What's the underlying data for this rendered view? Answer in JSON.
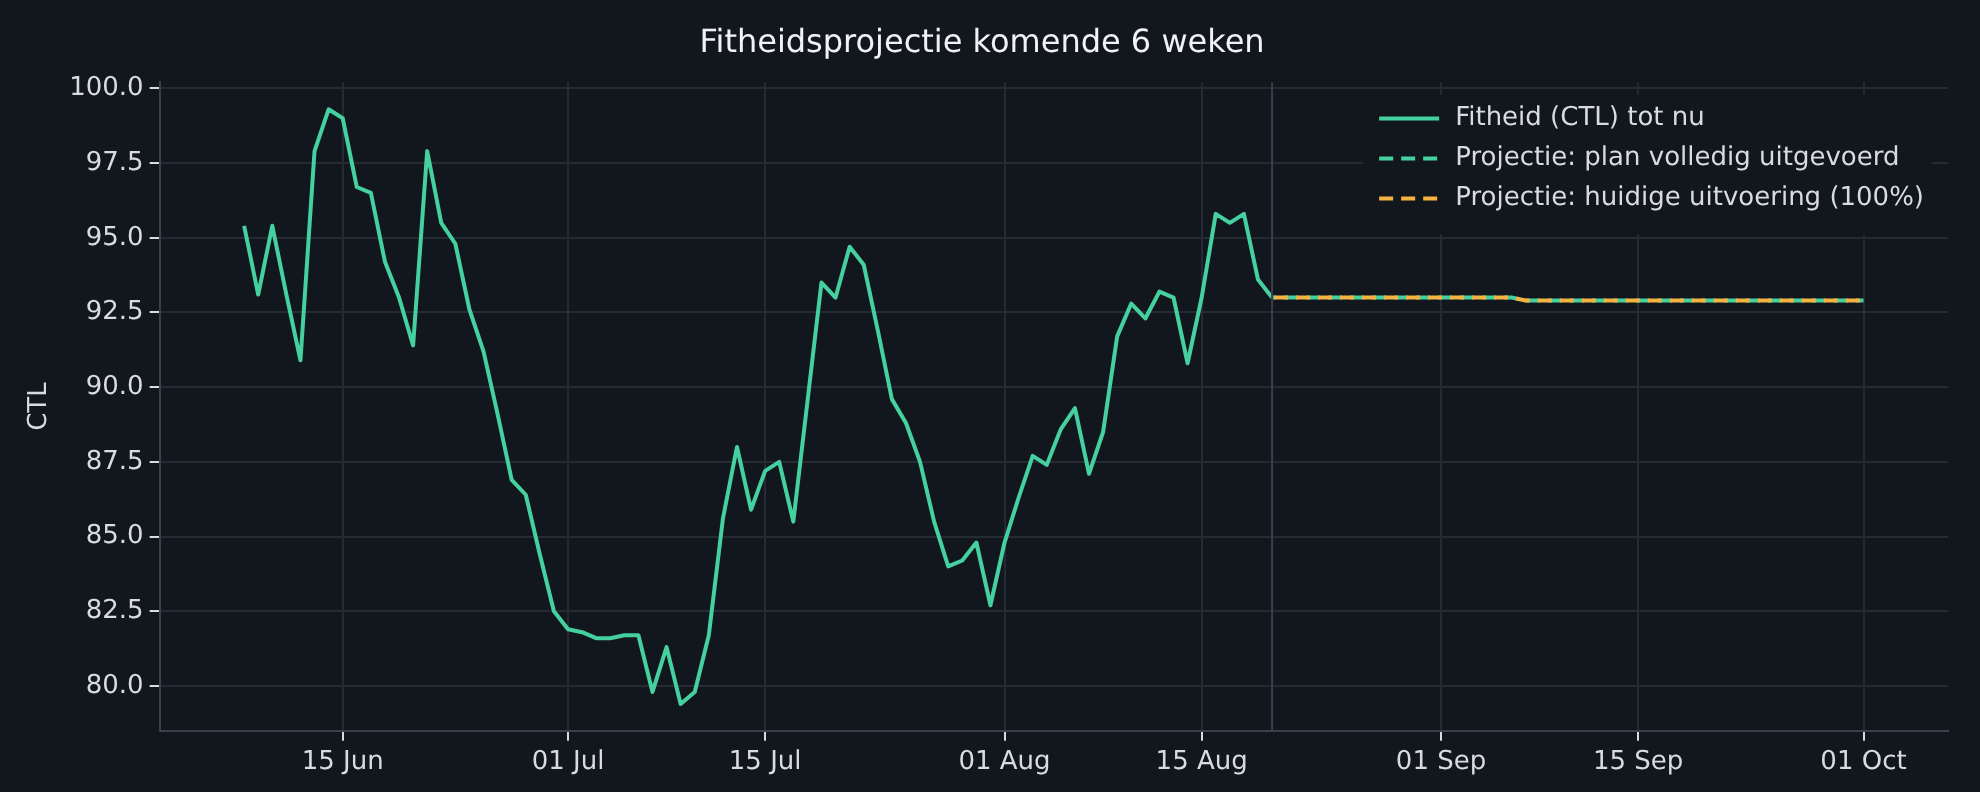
{
  "chart_data": {
    "type": "line",
    "title": "Fitheidsprojectie komende 6 weken",
    "ylabel": "CTL",
    "xlim": [
      "--06-02",
      "--10-07"
    ],
    "xticks": [
      {
        "value": "--06-15",
        "label": "15 Jun"
      },
      {
        "value": "--07-01",
        "label": "01 Jul"
      },
      {
        "value": "--07-15",
        "label": "15 Jul"
      },
      {
        "value": "--08-01",
        "label": "01 Aug"
      },
      {
        "value": "--08-15",
        "label": "15 Aug"
      },
      {
        "value": "--09-01",
        "label": "01 Sep"
      },
      {
        "value": "--09-15",
        "label": "15 Sep"
      },
      {
        "value": "--10-01",
        "label": "01 Oct"
      }
    ],
    "ylim": [
      78.5,
      100.2
    ],
    "yticks": [
      {
        "value": 80,
        "label": "80.0"
      },
      {
        "value": 82.5,
        "label": "82.5"
      },
      {
        "value": 85,
        "label": "85.0"
      },
      {
        "value": 87.5,
        "label": "87.5"
      },
      {
        "value": 90,
        "label": "90.0"
      },
      {
        "value": 92.5,
        "label": "92.5"
      },
      {
        "value": 95,
        "label": "95.0"
      },
      {
        "value": 97.5,
        "label": "97.5"
      },
      {
        "value": 100,
        "label": "100.0"
      }
    ],
    "grid": true,
    "legend": "top right",
    "marker": "none",
    "ref_lines": [
      {
        "axis": "x",
        "value": "--08-20",
        "color": "#3a3f4b"
      }
    ],
    "series": [
      {
        "name": "Fitheid (CTL) tot nu",
        "color": "#45d19f",
        "line_style": "solid",
        "x": [
          "--06-08",
          "--06-09",
          "--06-10",
          "--06-11",
          "--06-12",
          "--06-13",
          "--06-14",
          "--06-15",
          "--06-16",
          "--06-17",
          "--06-18",
          "--06-19",
          "--06-20",
          "--06-21",
          "--06-22",
          "--06-23",
          "--06-24",
          "--06-25",
          "--06-26",
          "--06-27",
          "--06-28",
          "--06-29",
          "--06-30",
          "--07-01",
          "--07-02",
          "--07-03",
          "--07-04",
          "--07-05",
          "--07-06",
          "--07-07",
          "--07-08",
          "--07-09",
          "--07-10",
          "--07-11",
          "--07-12",
          "--07-13",
          "--07-14",
          "--07-15",
          "--07-16",
          "--07-17",
          "--07-18",
          "--07-19",
          "--07-20",
          "--07-21",
          "--07-22",
          "--07-23",
          "--07-24",
          "--07-25",
          "--07-26",
          "--07-27",
          "--07-28",
          "--07-29",
          "--07-30",
          "--07-31",
          "--08-01",
          "--08-02",
          "--08-03",
          "--08-04",
          "--08-05",
          "--08-06",
          "--08-07",
          "--08-08",
          "--08-09",
          "--08-10",
          "--08-11",
          "--08-12",
          "--08-13",
          "--08-14",
          "--08-15",
          "--08-16",
          "--08-17",
          "--08-18",
          "--08-19",
          "--08-20"
        ],
        "values": [
          95.4,
          93.1,
          95.4,
          93.1,
          90.9,
          97.9,
          99.3,
          99.0,
          96.7,
          96.5,
          94.2,
          93.0,
          91.4,
          97.9,
          95.5,
          94.8,
          92.6,
          91.2,
          89.1,
          86.9,
          86.4,
          84.4,
          82.5,
          81.9,
          81.8,
          81.6,
          81.6,
          81.7,
          81.7,
          79.8,
          81.3,
          79.4,
          79.8,
          81.7,
          85.6,
          88.0,
          85.9,
          87.2,
          87.5,
          85.5,
          89.5,
          93.5,
          93.0,
          94.7,
          94.1,
          91.9,
          89.6,
          88.8,
          87.5,
          85.5,
          84.0,
          84.2,
          84.8,
          82.7,
          84.8,
          86.3,
          87.7,
          87.4,
          88.6,
          89.3,
          87.1,
          88.5,
          91.7,
          92.8,
          92.3,
          93.2,
          93.0,
          90.8,
          93.0,
          95.8,
          95.5,
          95.8,
          93.6,
          93.0
        ]
      },
      {
        "name": "Projectie: plan volledig uitgevoerd",
        "color": "#45d19f",
        "line_style": "dashed",
        "x": [
          "--08-20",
          "--09-06",
          "--09-07",
          "--10-01"
        ],
        "values": [
          93.0,
          93.0,
          92.9,
          92.9
        ]
      },
      {
        "name": "Projectie: huidige uitvoering (100%)",
        "color": "#f5b342",
        "line_style": "dashed",
        "x": [
          "--08-20",
          "--09-06",
          "--09-07",
          "--10-01"
        ],
        "values": [
          93.0,
          93.0,
          92.9,
          92.9
        ]
      }
    ]
  }
}
